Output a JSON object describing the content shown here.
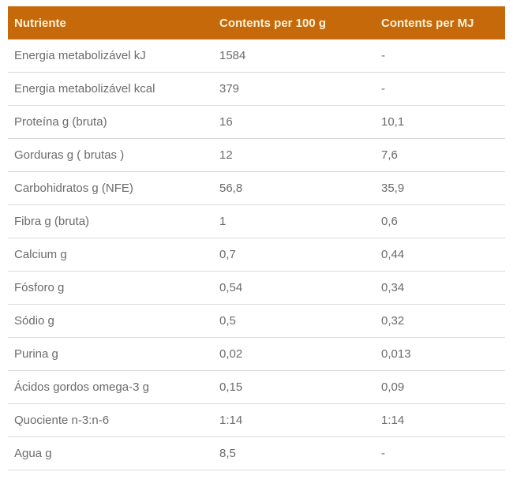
{
  "chart_data": {
    "type": "table",
    "title": "",
    "columns": [
      "Nutriente",
      "Contents per 100 g",
      "Contents per MJ"
    ],
    "rows": [
      [
        "Energia metabolizável kJ",
        "1584",
        "-"
      ],
      [
        "Energia metabolizável kcal",
        "379",
        "-"
      ],
      [
        "Proteína g (bruta)",
        "16",
        "10,1"
      ],
      [
        "Gorduras g ( brutas )",
        "12",
        "7,6"
      ],
      [
        "Carbohidratos g (NFE)",
        "56,8",
        "35,9"
      ],
      [
        "Fibra g (bruta)",
        "1",
        "0,6"
      ],
      [
        "Calcium g",
        "0,7",
        "0,44"
      ],
      [
        "Fósforo g",
        "0,54",
        "0,34"
      ],
      [
        "Sódio g",
        "0,5",
        "0,32"
      ],
      [
        "Purina g",
        "0,02",
        "0,013"
      ],
      [
        "Ácidos gordos omega-3 g",
        "0,15",
        "0,09"
      ],
      [
        "Quociente n-3:n-6",
        "1:14",
        "1:14"
      ],
      [
        "Agua g",
        "8,5",
        "-"
      ]
    ],
    "layout": {
      "legend": "none",
      "grid": "horizontal-dividers"
    },
    "colors": {
      "header_background": "#c5690a",
      "header_text": "#fbf3dc",
      "body_text": "#6b6b6b",
      "divider": "#d9d9d9",
      "page_background": "#ffffff"
    }
  }
}
